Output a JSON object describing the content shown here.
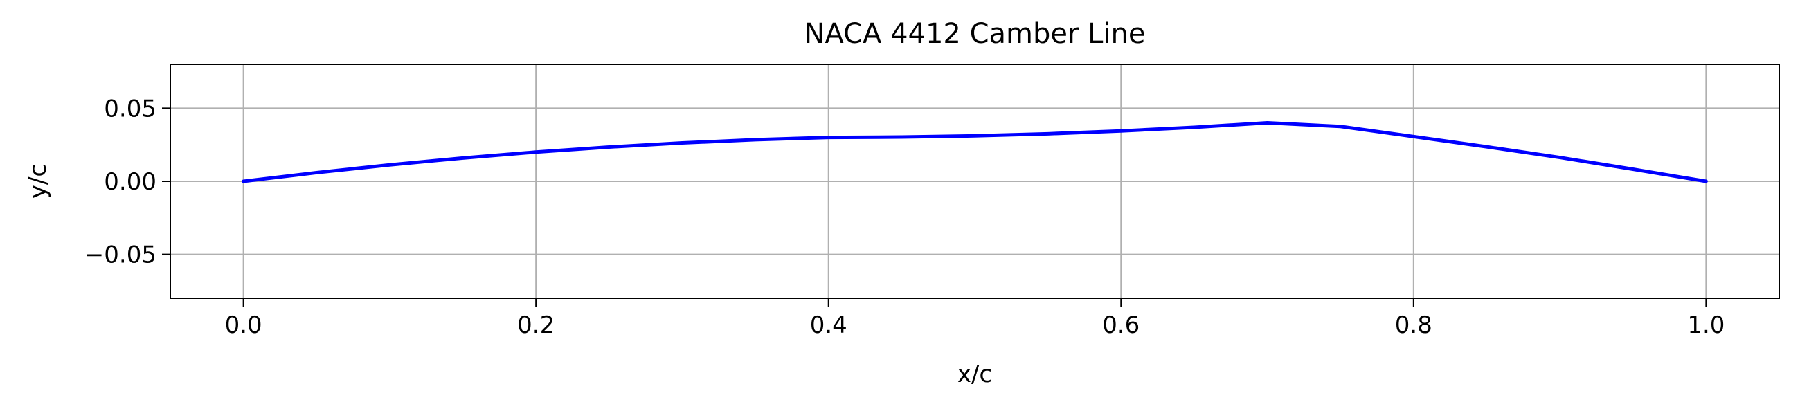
{
  "chart_data": {
    "type": "line",
    "title": "NACA 4412 Camber Line",
    "xlabel": "x/c",
    "ylabel": "y/c",
    "xlim": [
      -0.05,
      1.05
    ],
    "ylim": [
      -0.08,
      0.08
    ],
    "xticks": [
      0.0,
      0.2,
      0.4,
      0.6,
      0.8,
      1.0
    ],
    "xtick_labels": [
      "0.0",
      "0.2",
      "0.4",
      "0.6",
      "0.8",
      "1.0"
    ],
    "yticks": [
      -0.05,
      0.0,
      0.05
    ],
    "ytick_labels": [
      "−0.05",
      "0.00",
      "0.05"
    ],
    "grid": true,
    "series": [
      {
        "color": "#0000ff",
        "x": [
          0.0,
          0.05,
          0.1,
          0.15,
          0.2,
          0.25,
          0.3,
          0.35,
          0.4,
          0.45,
          0.5,
          0.55,
          0.6,
          0.65,
          0.7,
          0.75,
          0.8,
          0.85,
          0.9,
          0.95,
          1.0
        ],
        "y": [
          0.0,
          0.00594,
          0.01125,
          0.01594,
          0.02,
          0.02344,
          0.02625,
          0.02844,
          0.03,
          0.03028,
          0.03111,
          0.0325,
          0.03444,
          0.03694,
          0.04,
          0.0375,
          0.0306,
          0.0236,
          0.0163,
          0.0083,
          0.0
        ]
      }
    ]
  }
}
